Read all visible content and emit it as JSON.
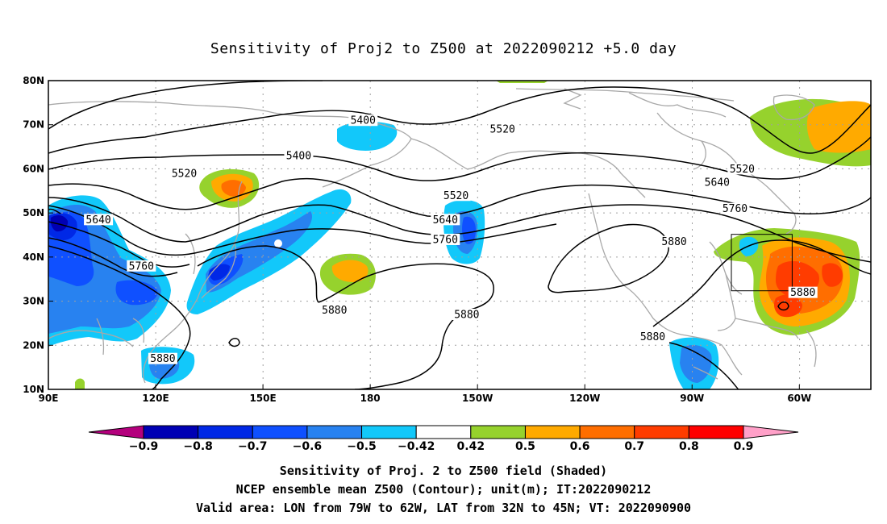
{
  "title": "Sensitivity of Proj2 to Z500 at 2022090212 +5.0 day",
  "lat_labels": [
    "80N",
    "70N",
    "60N",
    "50N",
    "40N",
    "30N",
    "20N",
    "10N"
  ],
  "lon_labels": [
    "90E",
    "120E",
    "150E",
    "180",
    "150W",
    "120W",
    "90W",
    "60W"
  ],
  "contour_labels": [
    {
      "text": "5400",
      "lon": 160,
      "lat": 63
    },
    {
      "text": "5400",
      "lon": 178,
      "lat": 71
    },
    {
      "text": "5520",
      "lon": 217,
      "lat": 69
    },
    {
      "text": "5520",
      "lon": 284,
      "lat": 60
    },
    {
      "text": "5520",
      "lon": 128,
      "lat": 59
    },
    {
      "text": "5520",
      "lon": 204,
      "lat": 54
    },
    {
      "text": "5640",
      "lon": 104,
      "lat": 48.5
    },
    {
      "text": "5640",
      "lon": 277,
      "lat": 57
    },
    {
      "text": "5640",
      "lon": 201,
      "lat": 48.5
    },
    {
      "text": "5760",
      "lon": 116,
      "lat": 38
    },
    {
      "text": "5760",
      "lon": 201,
      "lat": 44
    },
    {
      "text": "5760",
      "lon": 282,
      "lat": 51
    },
    {
      "text": "5880",
      "lon": 265,
      "lat": 43.5
    },
    {
      "text": "5880",
      "lon": 170,
      "lat": 28
    },
    {
      "text": "5880",
      "lon": 207,
      "lat": 27
    },
    {
      "text": "5880",
      "lon": 259,
      "lat": 22
    },
    {
      "text": "5880",
      "lon": 301,
      "lat": 32
    },
    {
      "text": "5880",
      "lon": 122,
      "lat": 17
    }
  ],
  "colorbar": {
    "labels": [
      "-0.9",
      "-0.8",
      "-0.7",
      "-0.6",
      "-0.5",
      "-0.42",
      "0.42",
      "0.5",
      "0.6",
      "0.7",
      "0.8",
      "0.9"
    ],
    "colors": [
      "#b4007d",
      "#0000b4",
      "#0028e6",
      "#0f50ff",
      "#2882f0",
      "#12c8fa",
      "#ffffff",
      "#96d22d",
      "#ffaa00",
      "#ff6e00",
      "#ff3c00",
      "#ff0000",
      "#ffa0c8"
    ]
  },
  "footer": {
    "line1": "Sensitivity of Proj. 2 to Z500 field (Shaded)",
    "line2": "NCEP ensemble mean Z500 (Contour); unit(m); IT:2022090212",
    "line3": "Valid area: LON from 79W to 62W, LAT from 32N to 45N; VT: 2022090900"
  },
  "valid_box": {
    "lon_min": -79,
    "lon_max": -62,
    "lat_min": 32,
    "lat_max": 45
  }
}
